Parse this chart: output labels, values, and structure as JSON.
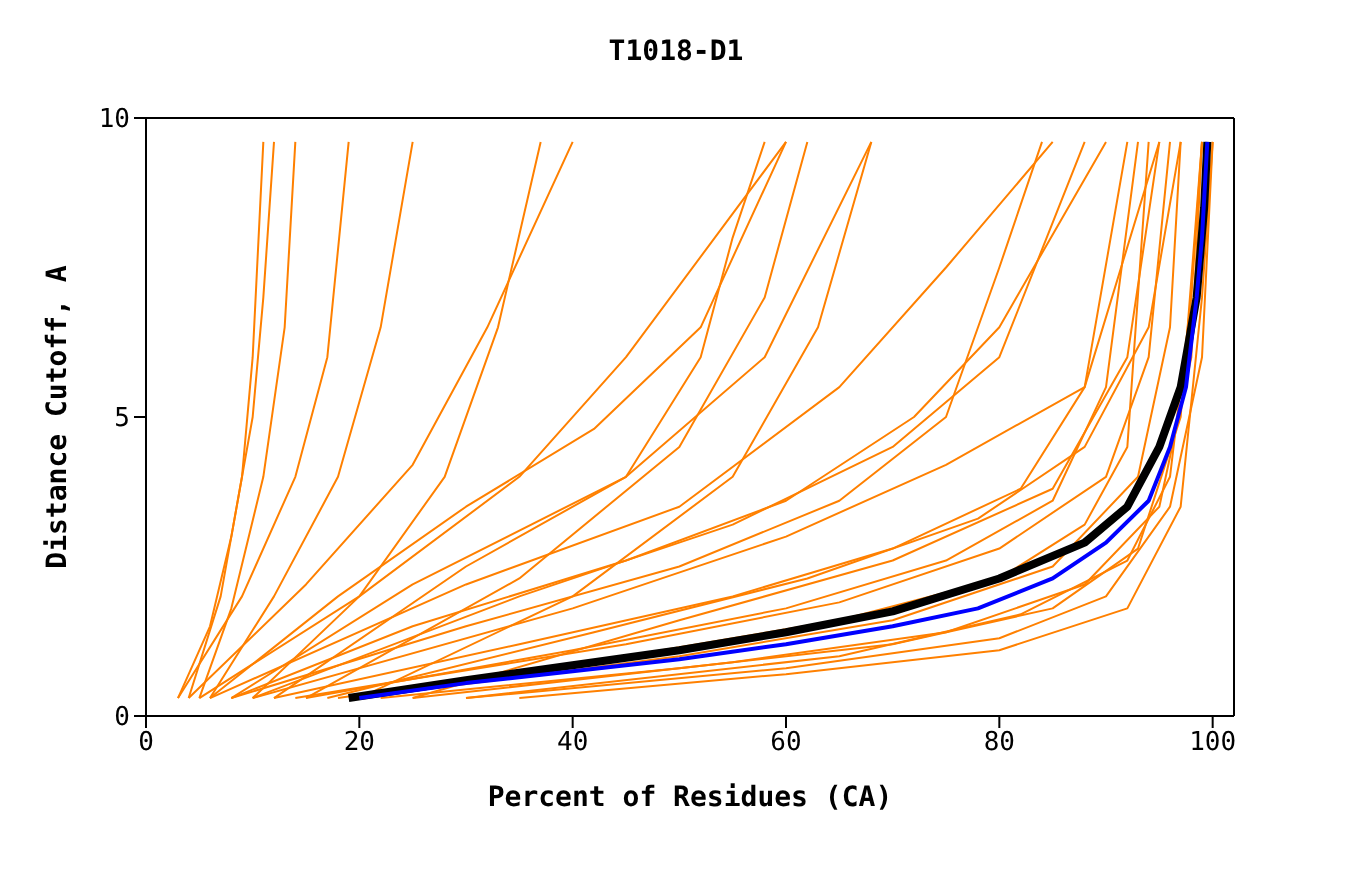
{
  "chart_data": {
    "type": "line",
    "title": "T1018-D1",
    "xlabel": "Percent of Residues (CA)",
    "ylabel": "Distance Cutoff, A",
    "xlim": [
      0,
      102
    ],
    "ylim": [
      0,
      10
    ],
    "xticks": [
      0,
      20,
      40,
      60,
      80,
      100
    ],
    "yticks": [
      0,
      5,
      10
    ],
    "grid": false,
    "marker": "none",
    "line_style": "solid",
    "series": [
      {
        "color": "#ff8000",
        "x": [
          3,
          6,
          8,
          10,
          11,
          12
        ],
        "values": [
          0.3,
          1.5,
          3,
          5,
          7,
          9.6
        ]
      },
      {
        "color": "#ff8000",
        "x": [
          4,
          7,
          9,
          10,
          11
        ],
        "values": [
          0.3,
          2,
          4,
          6,
          9.6
        ]
      },
      {
        "color": "#ff8000",
        "x": [
          5,
          8,
          11,
          13,
          14
        ],
        "values": [
          0.3,
          1.8,
          4,
          6.5,
          9.6
        ]
      },
      {
        "color": "#ff8000",
        "x": [
          3,
          9,
          14,
          17,
          19
        ],
        "values": [
          0.3,
          2,
          4,
          6,
          9.6
        ]
      },
      {
        "color": "#ff8000",
        "x": [
          6,
          12,
          18,
          22,
          25
        ],
        "values": [
          0.3,
          2,
          4,
          6.5,
          9.6
        ]
      },
      {
        "color": "#ff8000",
        "x": [
          4,
          15,
          25,
          32,
          40
        ],
        "values": [
          0.3,
          2.2,
          4.2,
          6.5,
          9.6
        ]
      },
      {
        "color": "#ff8000",
        "x": [
          5,
          20,
          35,
          45,
          60
        ],
        "values": [
          0.3,
          2,
          4,
          6,
          9.6
        ]
      },
      {
        "color": "#ff8000",
        "x": [
          8,
          25,
          45,
          58,
          68
        ],
        "values": [
          0.3,
          2.2,
          4,
          6,
          9.6
        ]
      },
      {
        "color": "#ff8000",
        "x": [
          6,
          30,
          50,
          65,
          75,
          85
        ],
        "values": [
          0.3,
          2.2,
          3.5,
          5.5,
          7.5,
          9.6
        ]
      },
      {
        "color": "#ff8000",
        "x": [
          10,
          35,
          55,
          70,
          80,
          88
        ],
        "values": [
          0.3,
          2,
          3.2,
          4.5,
          6,
          9.6
        ]
      },
      {
        "color": "#ff8000",
        "x": [
          8,
          30,
          50,
          65,
          75,
          80,
          84
        ],
        "values": [
          0.3,
          1.5,
          2.5,
          3.6,
          5,
          7.5,
          9.6
        ]
      },
      {
        "color": "#ff8000",
        "x": [
          10,
          40,
          60,
          75,
          88,
          95
        ],
        "values": [
          0.3,
          1.8,
          3,
          4.2,
          5.5,
          9.6
        ]
      },
      {
        "color": "#ff8000",
        "x": [
          12,
          35,
          55,
          70,
          82,
          88,
          92
        ],
        "values": [
          0.3,
          1.2,
          2,
          2.8,
          3.8,
          5.5,
          9.6
        ]
      },
      {
        "color": "#ff8000",
        "x": [
          15,
          40,
          60,
          75,
          85,
          90,
          93
        ],
        "values": [
          0.3,
          1.1,
          1.8,
          2.6,
          3.6,
          5.5,
          9.6
        ]
      },
      {
        "color": "#ff8000",
        "x": [
          14,
          45,
          65,
          80,
          90,
          94,
          96
        ],
        "values": [
          0.3,
          1.2,
          1.9,
          2.8,
          4,
          6,
          9.6
        ]
      },
      {
        "color": "#ff8000",
        "x": [
          20,
          50,
          70,
          85,
          93,
          96,
          97
        ],
        "values": [
          0.3,
          1,
          1.6,
          2.5,
          4,
          6.5,
          9.6
        ]
      },
      {
        "color": "#ff8000",
        "x": [
          25,
          55,
          75,
          88,
          95,
          98,
          99
        ],
        "values": [
          0.3,
          0.9,
          1.4,
          2.2,
          3.5,
          6,
          9.6
        ]
      },
      {
        "color": "#ff8000",
        "x": [
          30,
          60,
          80,
          90,
          96,
          99,
          100
        ],
        "values": [
          0.3,
          0.8,
          1.3,
          2,
          3.5,
          6,
          9.6
        ]
      },
      {
        "color": "#ff8000",
        "x": [
          22,
          50,
          70,
          85,
          93,
          97,
          99
        ],
        "values": [
          0.3,
          0.8,
          1.2,
          1.8,
          2.8,
          5,
          9.6
        ]
      },
      {
        "color": "#ff8000",
        "x": [
          35,
          60,
          80,
          92,
          97,
          99,
          100
        ],
        "values": [
          0.3,
          0.7,
          1.1,
          1.8,
          3.5,
          7,
          9.6
        ]
      },
      {
        "color": "#ff8000",
        "x": [
          18,
          45,
          65,
          80,
          88,
          92,
          94
        ],
        "values": [
          0.3,
          1,
          1.6,
          2.3,
          3.2,
          4.5,
          9.6
        ]
      },
      {
        "color": "#ff8000",
        "x": [
          8,
          25,
          45,
          60,
          72,
          80,
          90
        ],
        "values": [
          0.3,
          1.5,
          2.6,
          3.6,
          5,
          6.5,
          9.6
        ]
      },
      {
        "color": "#ff8000",
        "x": [
          12,
          30,
          45,
          52,
          55,
          58
        ],
        "values": [
          0.3,
          2.5,
          4,
          6,
          8,
          9.6
        ]
      },
      {
        "color": "#ff8000",
        "x": [
          20,
          40,
          55,
          63,
          68
        ],
        "values": [
          0.3,
          2,
          4,
          6.5,
          9.6
        ]
      },
      {
        "color": "#ff8000",
        "x": [
          15,
          35,
          50,
          58,
          62
        ],
        "values": [
          0.3,
          2.3,
          4.5,
          7,
          9.6
        ]
      },
      {
        "color": "#ff8000",
        "x": [
          25,
          50,
          70,
          85,
          92,
          95
        ],
        "values": [
          0.3,
          1.6,
          2.6,
          3.8,
          6,
          9.6
        ]
      },
      {
        "color": "#ff8000",
        "x": [
          10,
          20,
          28,
          33,
          37
        ],
        "values": [
          0.3,
          2,
          4,
          6.5,
          9.6
        ]
      },
      {
        "color": "#ff8000",
        "x": [
          30,
          65,
          82,
          92,
          96,
          98,
          99
        ],
        "values": [
          0.3,
          1,
          1.7,
          2.6,
          4,
          7,
          9.6
        ]
      },
      {
        "color": "#ff8000",
        "x": [
          17,
          42,
          62,
          78,
          88,
          94,
          97
        ],
        "values": [
          0.3,
          1.4,
          2.3,
          3.3,
          4.5,
          6.5,
          9.6
        ]
      },
      {
        "color": "#ff8000",
        "x": [
          6,
          18,
          30,
          42,
          52,
          60
        ],
        "values": [
          0.3,
          2,
          3.5,
          4.8,
          6.5,
          9.6
        ]
      },
      {
        "color": "#000000",
        "x": [
          19,
          30,
          40,
          50,
          60,
          70,
          80,
          88,
          92,
          95,
          97,
          98.5,
          99.2,
          99.5
        ],
        "values": [
          0.3,
          0.6,
          0.85,
          1.1,
          1.4,
          1.75,
          2.3,
          2.9,
          3.5,
          4.5,
          5.5,
          7,
          8.5,
          9.6
        ]
      },
      {
        "color": "#0000ff",
        "x": [
          20,
          30,
          40,
          50,
          60,
          70,
          78,
          85,
          90,
          94,
          96,
          97.5,
          98.5,
          99,
          99.5
        ],
        "values": [
          0.3,
          0.55,
          0.75,
          0.95,
          1.2,
          1.5,
          1.8,
          2.3,
          2.9,
          3.6,
          4.5,
          5.5,
          7,
          8,
          9.6
        ]
      }
    ]
  }
}
